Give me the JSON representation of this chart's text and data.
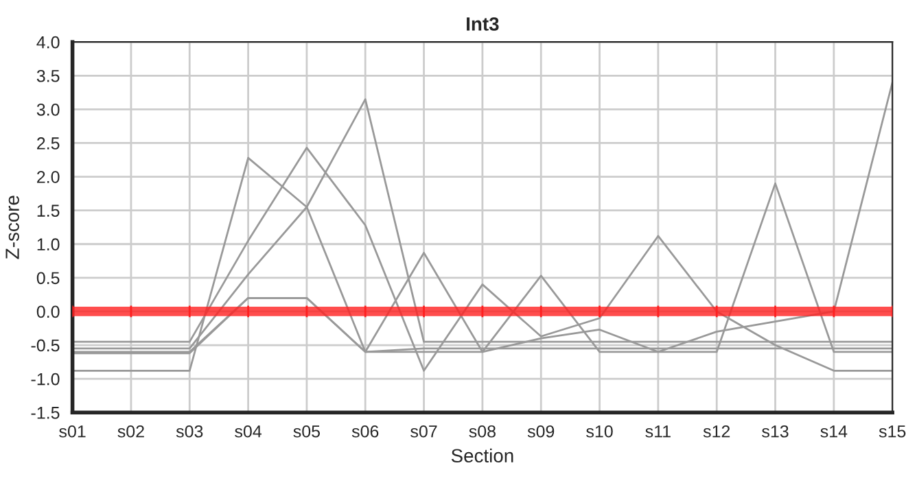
{
  "chart_data": {
    "type": "line",
    "title": "Int3",
    "xlabel": "Section",
    "ylabel": "Z-score",
    "categories": [
      "s01",
      "s02",
      "s03",
      "s04",
      "s05",
      "s06",
      "s07",
      "s08",
      "s09",
      "s10",
      "s11",
      "s12",
      "s13",
      "s14",
      "s15"
    ],
    "series": [
      {
        "color": "#999999",
        "values": [
          -0.88,
          -0.88,
          -0.88,
          2.28,
          1.55,
          -0.6,
          -0.55,
          -0.55,
          -0.55,
          -0.55,
          -0.55,
          -0.55,
          -0.55,
          -0.55,
          -0.55
        ]
      },
      {
        "color": "#999999",
        "values": [
          -0.45,
          -0.45,
          -0.45,
          1.05,
          2.43,
          1.28,
          -0.88,
          0.4,
          -0.37,
          -0.1,
          1.12,
          0.0,
          -0.5,
          -0.88,
          -0.88
        ]
      },
      {
        "color": "#999999",
        "values": [
          -0.55,
          -0.55,
          -0.55,
          0.55,
          1.55,
          3.15,
          -0.45,
          -0.45,
          -0.45,
          -0.45,
          -0.45,
          -0.45,
          -0.45,
          -0.45,
          -0.45
        ]
      },
      {
        "color": "#999999",
        "values": [
          -0.6,
          -0.6,
          -0.6,
          0.2,
          0.2,
          -0.6,
          0.87,
          -0.6,
          0.53,
          -0.6,
          -0.6,
          -0.6,
          1.9,
          -0.6,
          -0.6
        ]
      },
      {
        "color": "#999999",
        "values": [
          -0.62,
          -0.62,
          -0.62,
          0.2,
          0.2,
          -0.6,
          -0.6,
          -0.6,
          -0.4,
          -0.27,
          -0.6,
          -0.3,
          -0.15,
          0.0,
          3.4
        ]
      }
    ],
    "ylim": [
      -1.5,
      4.0
    ],
    "yticks": [
      {
        "value": -1.5,
        "label": "-1.5"
      },
      {
        "value": -1.0,
        "label": "-1.0"
      },
      {
        "value": -0.5,
        "label": "-0.5"
      },
      {
        "value": 0,
        "label": "0.0"
      },
      {
        "value": 0.5,
        "label": "0.5"
      },
      {
        "value": 1.0,
        "label": "1.0"
      },
      {
        "value": 1.5,
        "label": "1.5"
      },
      {
        "value": 2.0,
        "label": "2.0"
      },
      {
        "value": 2.5,
        "label": "2.5"
      },
      {
        "value": 3.0,
        "label": "3.0"
      },
      {
        "value": 3.5,
        "label": "3.5"
      },
      {
        "value": 4.0,
        "label": "4.0"
      }
    ],
    "ref_lines": [
      {
        "axis": "y",
        "value": 0,
        "color": "#ff2020"
      }
    ],
    "grid": true,
    "legend": false,
    "marker": "none",
    "line_style": "solid"
  }
}
